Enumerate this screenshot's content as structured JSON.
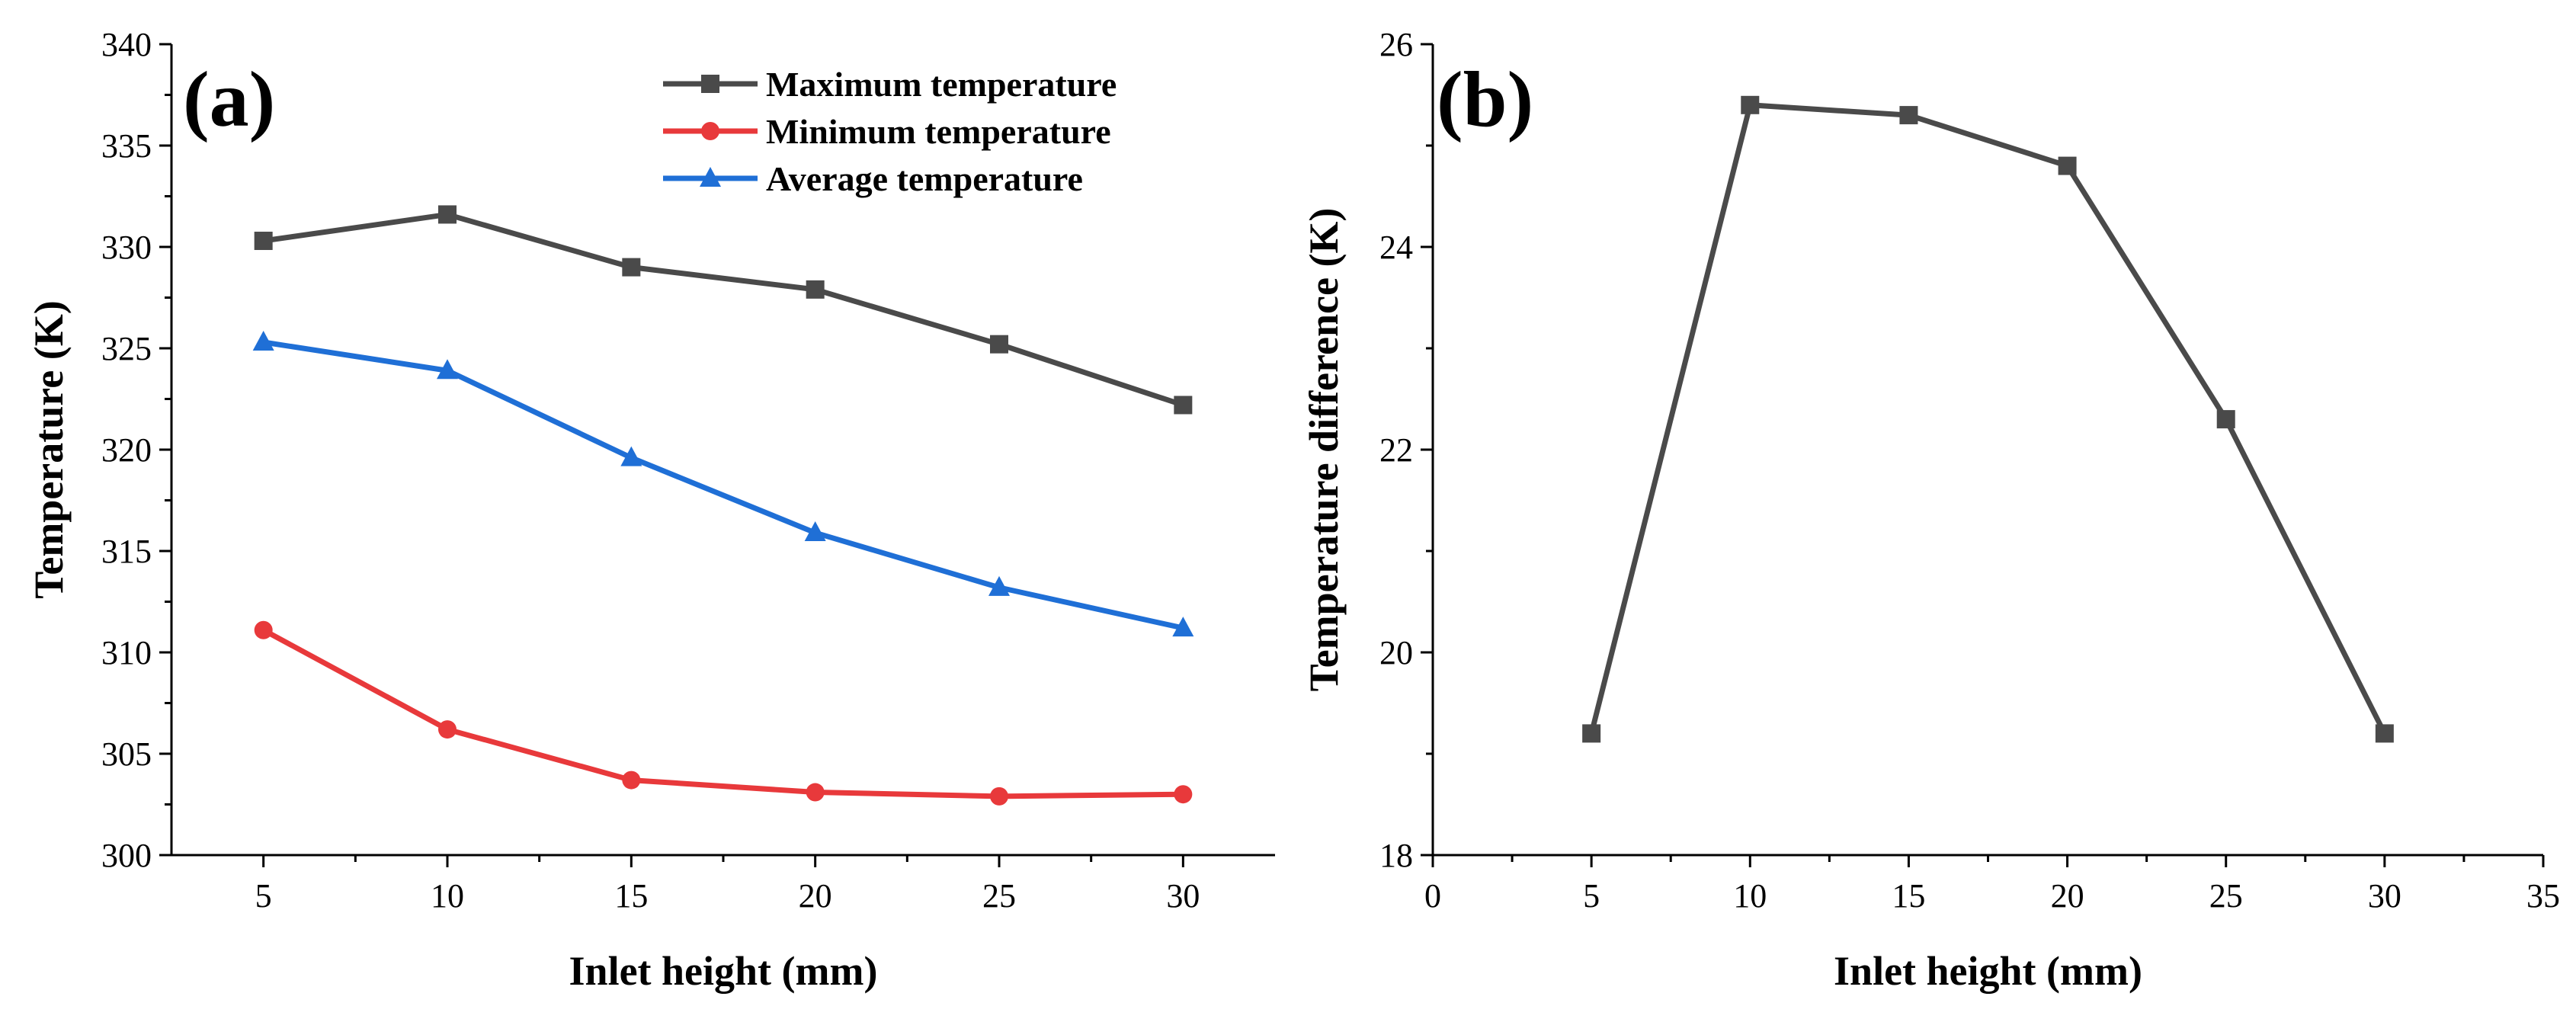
{
  "chart_data": [
    {
      "type": "line",
      "panel_label": "(a)",
      "xlabel": "Inlet height (mm)",
      "ylabel": "Temperature (K)",
      "x": [
        5,
        10,
        15,
        20,
        25,
        30
      ],
      "xlim": [
        2.5,
        32.5
      ],
      "xticks": [
        5,
        10,
        15,
        20,
        25,
        30
      ],
      "ylim": [
        300,
        340
      ],
      "yticks": [
        300,
        305,
        310,
        315,
        320,
        325,
        330,
        335,
        340
      ],
      "legend_position": "top-right",
      "series": [
        {
          "name": "Maximum temperature",
          "color": "#4a4a4a",
          "marker": "square",
          "values": [
            330.3,
            331.6,
            329.0,
            327.9,
            325.2,
            322.2
          ]
        },
        {
          "name": "Minimum temperature",
          "color": "#e8393b",
          "marker": "circle",
          "values": [
            311.1,
            306.2,
            303.7,
            303.1,
            302.9,
            303.0
          ]
        },
        {
          "name": "Average temperature",
          "color": "#1f6fd6",
          "marker": "triangle",
          "values": [
            325.3,
            323.9,
            319.6,
            315.9,
            313.2,
            311.2
          ]
        }
      ]
    },
    {
      "type": "line",
      "panel_label": "(b)",
      "xlabel": "Inlet height (mm)",
      "ylabel": "Temperature difference (K)",
      "x": [
        5,
        10,
        15,
        20,
        25,
        30
      ],
      "xlim": [
        0,
        35
      ],
      "xticks": [
        0,
        5,
        10,
        15,
        20,
        25,
        30,
        35
      ],
      "ylim": [
        18,
        26
      ],
      "yticks": [
        18,
        20,
        22,
        24,
        26
      ],
      "series": [
        {
          "name": "Temperature difference",
          "color": "#4a4a4a",
          "marker": "square",
          "values": [
            19.2,
            25.4,
            25.3,
            24.8,
            22.3,
            19.2
          ]
        }
      ]
    }
  ]
}
